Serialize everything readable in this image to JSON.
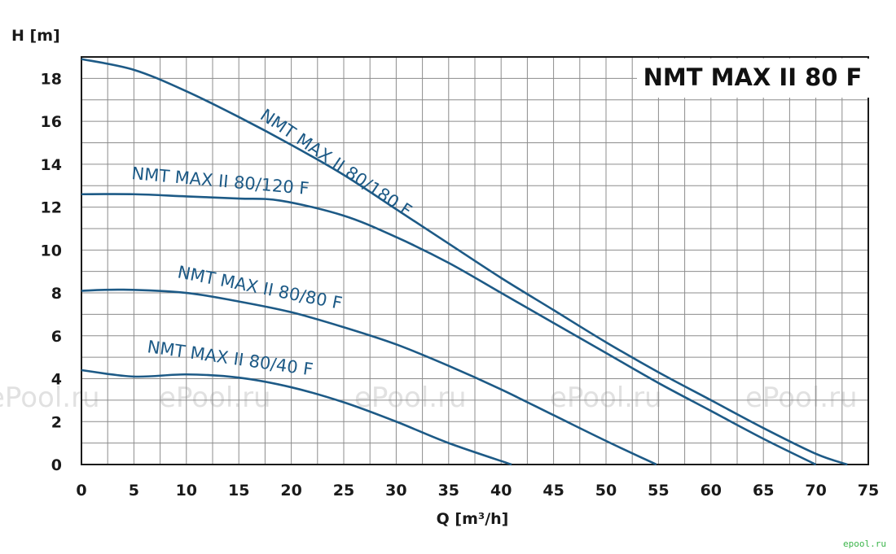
{
  "chart_data": {
    "type": "line",
    "title": "NMT MAX II 80 F",
    "xlabel": "Q [m³/h]",
    "ylabel": "H [m]",
    "xlim": [
      0,
      75
    ],
    "ylim": [
      0,
      19
    ],
    "x_ticks": [
      "0",
      "5",
      "10",
      "15",
      "20",
      "25",
      "30",
      "35",
      "40",
      "45",
      "50",
      "55",
      "60",
      "65",
      "70",
      "75"
    ],
    "y_ticks": [
      "0",
      "2",
      "4",
      "6",
      "8",
      "10",
      "12",
      "14",
      "16",
      "18"
    ],
    "grid": true,
    "series": [
      {
        "name": "NMT  MAX II 80/180 F",
        "x": [
          0,
          5,
          10,
          15,
          20,
          25,
          30,
          35,
          40,
          45,
          50,
          55,
          60,
          65,
          70,
          73
        ],
        "y": [
          18.9,
          18.4,
          17.4,
          16.2,
          14.9,
          13.5,
          11.9,
          10.3,
          8.7,
          7.2,
          5.7,
          4.3,
          3.0,
          1.7,
          0.5,
          0
        ]
      },
      {
        "name": "NMT  MAX II 80/120 F",
        "x": [
          0,
          5,
          10,
          15,
          19,
          25,
          30,
          35,
          40,
          45,
          50,
          55,
          60,
          65,
          70
        ],
        "y": [
          12.6,
          12.6,
          12.5,
          12.4,
          12.3,
          11.6,
          10.6,
          9.4,
          8.0,
          6.6,
          5.2,
          3.8,
          2.5,
          1.2,
          0
        ]
      },
      {
        "name": "NMT  MAX II 80/80 F",
        "x": [
          0,
          4,
          10,
          15,
          20,
          25,
          30,
          35,
          40,
          45,
          50,
          54.8
        ],
        "y": [
          8.1,
          8.15,
          8.0,
          7.6,
          7.1,
          6.4,
          5.6,
          4.6,
          3.5,
          2.3,
          1.1,
          0
        ]
      },
      {
        "name": "NMT  MAX II 80/40 F",
        "x": [
          0,
          5,
          10,
          15,
          20,
          25,
          30,
          35,
          41
        ],
        "y": [
          4.4,
          4.1,
          4.2,
          4.05,
          3.6,
          2.9,
          2.0,
          1.0,
          0
        ]
      }
    ]
  },
  "watermark": "ePool.ru",
  "footer_logo": "epool.ru",
  "colors": {
    "curve": "#1d5a86",
    "grid": "#8c8c8c",
    "frame": "#1b1b1b"
  }
}
